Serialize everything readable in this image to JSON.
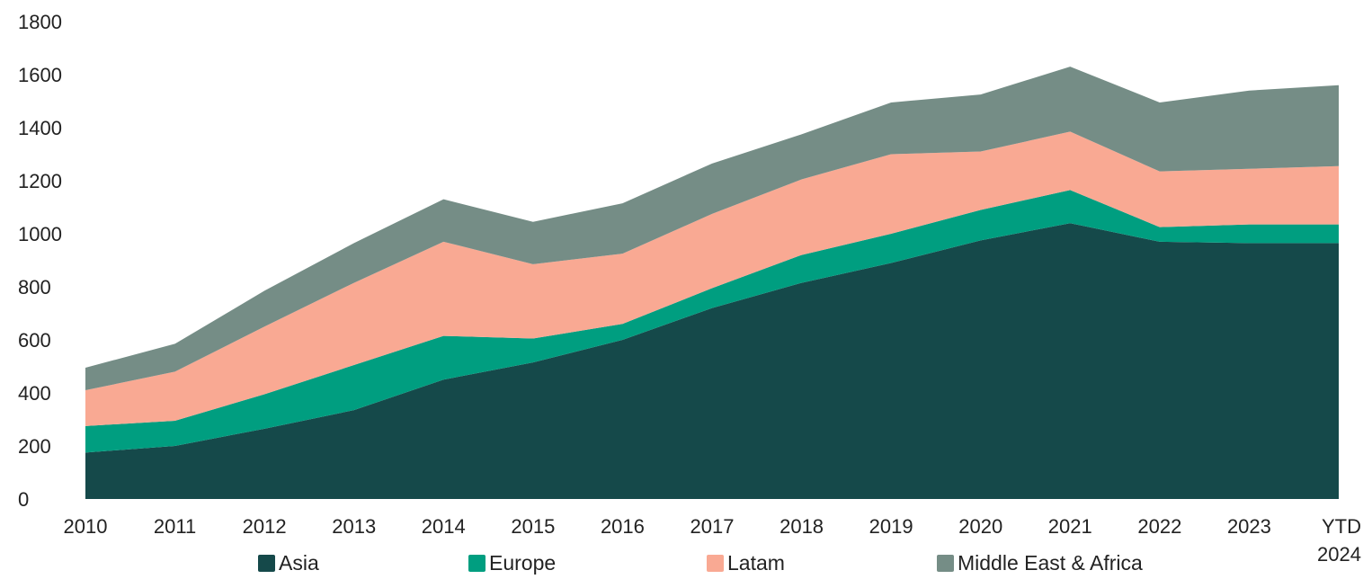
{
  "chart_data": {
    "type": "area",
    "stacked": true,
    "title": "",
    "xlabel": "",
    "ylabel": "",
    "categories": [
      "2010",
      "2011",
      "2012",
      "2013",
      "2014",
      "2015",
      "2016",
      "2017",
      "2018",
      "2019",
      "2020",
      "2021",
      "2022",
      "2023",
      "YTD 2024"
    ],
    "series": [
      {
        "name": "Asia",
        "color": "#15494a",
        "values": [
          175,
          200,
          265,
          335,
          450,
          515,
          600,
          720,
          815,
          890,
          975,
          1040,
          970,
          965,
          965
        ]
      },
      {
        "name": "Europe",
        "color": "#009e80",
        "values": [
          100,
          95,
          130,
          170,
          165,
          90,
          60,
          75,
          105,
          110,
          115,
          125,
          55,
          70,
          70
        ]
      },
      {
        "name": "Latam",
        "color": "#f9a993",
        "values": [
          135,
          185,
          255,
          310,
          355,
          280,
          265,
          280,
          285,
          300,
          220,
          220,
          210,
          210,
          220
        ]
      },
      {
        "name": "Middle East & Africa",
        "color": "#758d86",
        "values": [
          85,
          105,
          135,
          150,
          160,
          160,
          190,
          190,
          170,
          195,
          215,
          245,
          260,
          295,
          305
        ]
      }
    ],
    "ylim": [
      0,
      1800
    ],
    "yticks": [
      0,
      200,
      400,
      600,
      800,
      1000,
      1200,
      1400,
      1600,
      1800
    ],
    "xtick_labels": [
      "2010",
      "2011",
      "2012",
      "2013",
      "2014",
      "2015",
      "2016",
      "2017",
      "2018",
      "2019",
      "2020",
      "2021",
      "2022",
      "2023",
      [
        "YTD",
        "2024"
      ]
    ],
    "legend_position": "bottom",
    "grid": false
  }
}
